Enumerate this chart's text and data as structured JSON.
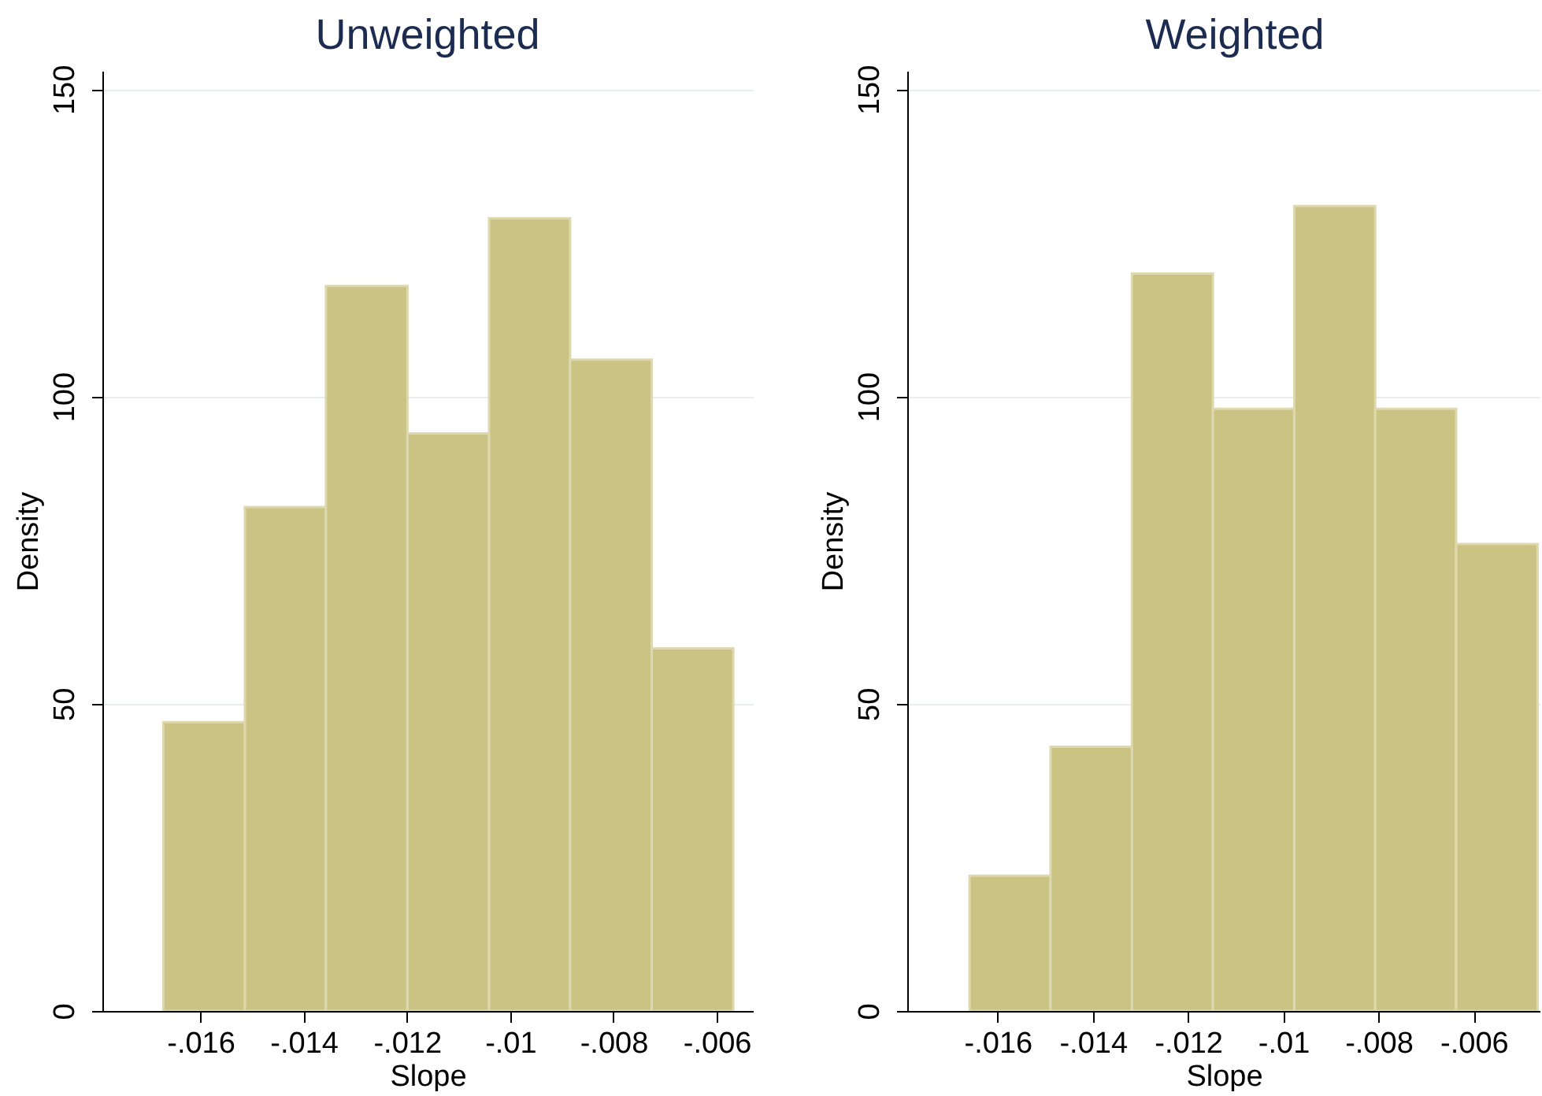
{
  "chart_data": [
    {
      "type": "histogram",
      "title": "Unweighted",
      "xlabel": "Slope",
      "ylabel": "Density",
      "bins": [
        -0.01672,
        -0.01514,
        -0.01357,
        -0.01199,
        -0.01041,
        -0.00884,
        -0.00726,
        -0.00568
      ],
      "values": [
        47,
        82,
        118,
        94,
        129,
        106,
        59
      ],
      "color": "#cbc383",
      "xlim": [
        -0.0179,
        -0.0053
      ],
      "ylim": [
        0,
        153
      ],
      "xticks": [
        {
          "value": -0.016,
          "label": "-.016"
        },
        {
          "value": -0.014,
          "label": "-.014"
        },
        {
          "value": -0.012,
          "label": "-.012"
        },
        {
          "value": -0.01,
          "label": "-.01"
        },
        {
          "value": -0.008,
          "label": "-.008"
        },
        {
          "value": -0.006,
          "label": "-.006"
        }
      ],
      "yticks": [
        0,
        50,
        100,
        150
      ],
      "grid": "y"
    },
    {
      "type": "histogram",
      "title": "Weighted",
      "xlabel": "Slope",
      "ylabel": "Density",
      "bins": [
        -0.01659,
        -0.01489,
        -0.01318,
        -0.01148,
        -0.00977,
        -0.00807,
        -0.00637,
        -0.00466
      ],
      "values": [
        22,
        43,
        120,
        98,
        131,
        98,
        76
      ],
      "color": "#cbc383",
      "xlim": [
        -0.0179,
        -0.0046
      ],
      "ylim": [
        0,
        153
      ],
      "xticks": [
        {
          "value": -0.016,
          "label": "-.016"
        },
        {
          "value": -0.014,
          "label": "-.014"
        },
        {
          "value": -0.012,
          "label": "-.012"
        },
        {
          "value": -0.01,
          "label": "-.01"
        },
        {
          "value": -0.008,
          "label": "-.008"
        },
        {
          "value": -0.006,
          "label": "-.006"
        }
      ],
      "yticks": [
        0,
        50,
        100,
        150
      ],
      "grid": "y"
    }
  ]
}
